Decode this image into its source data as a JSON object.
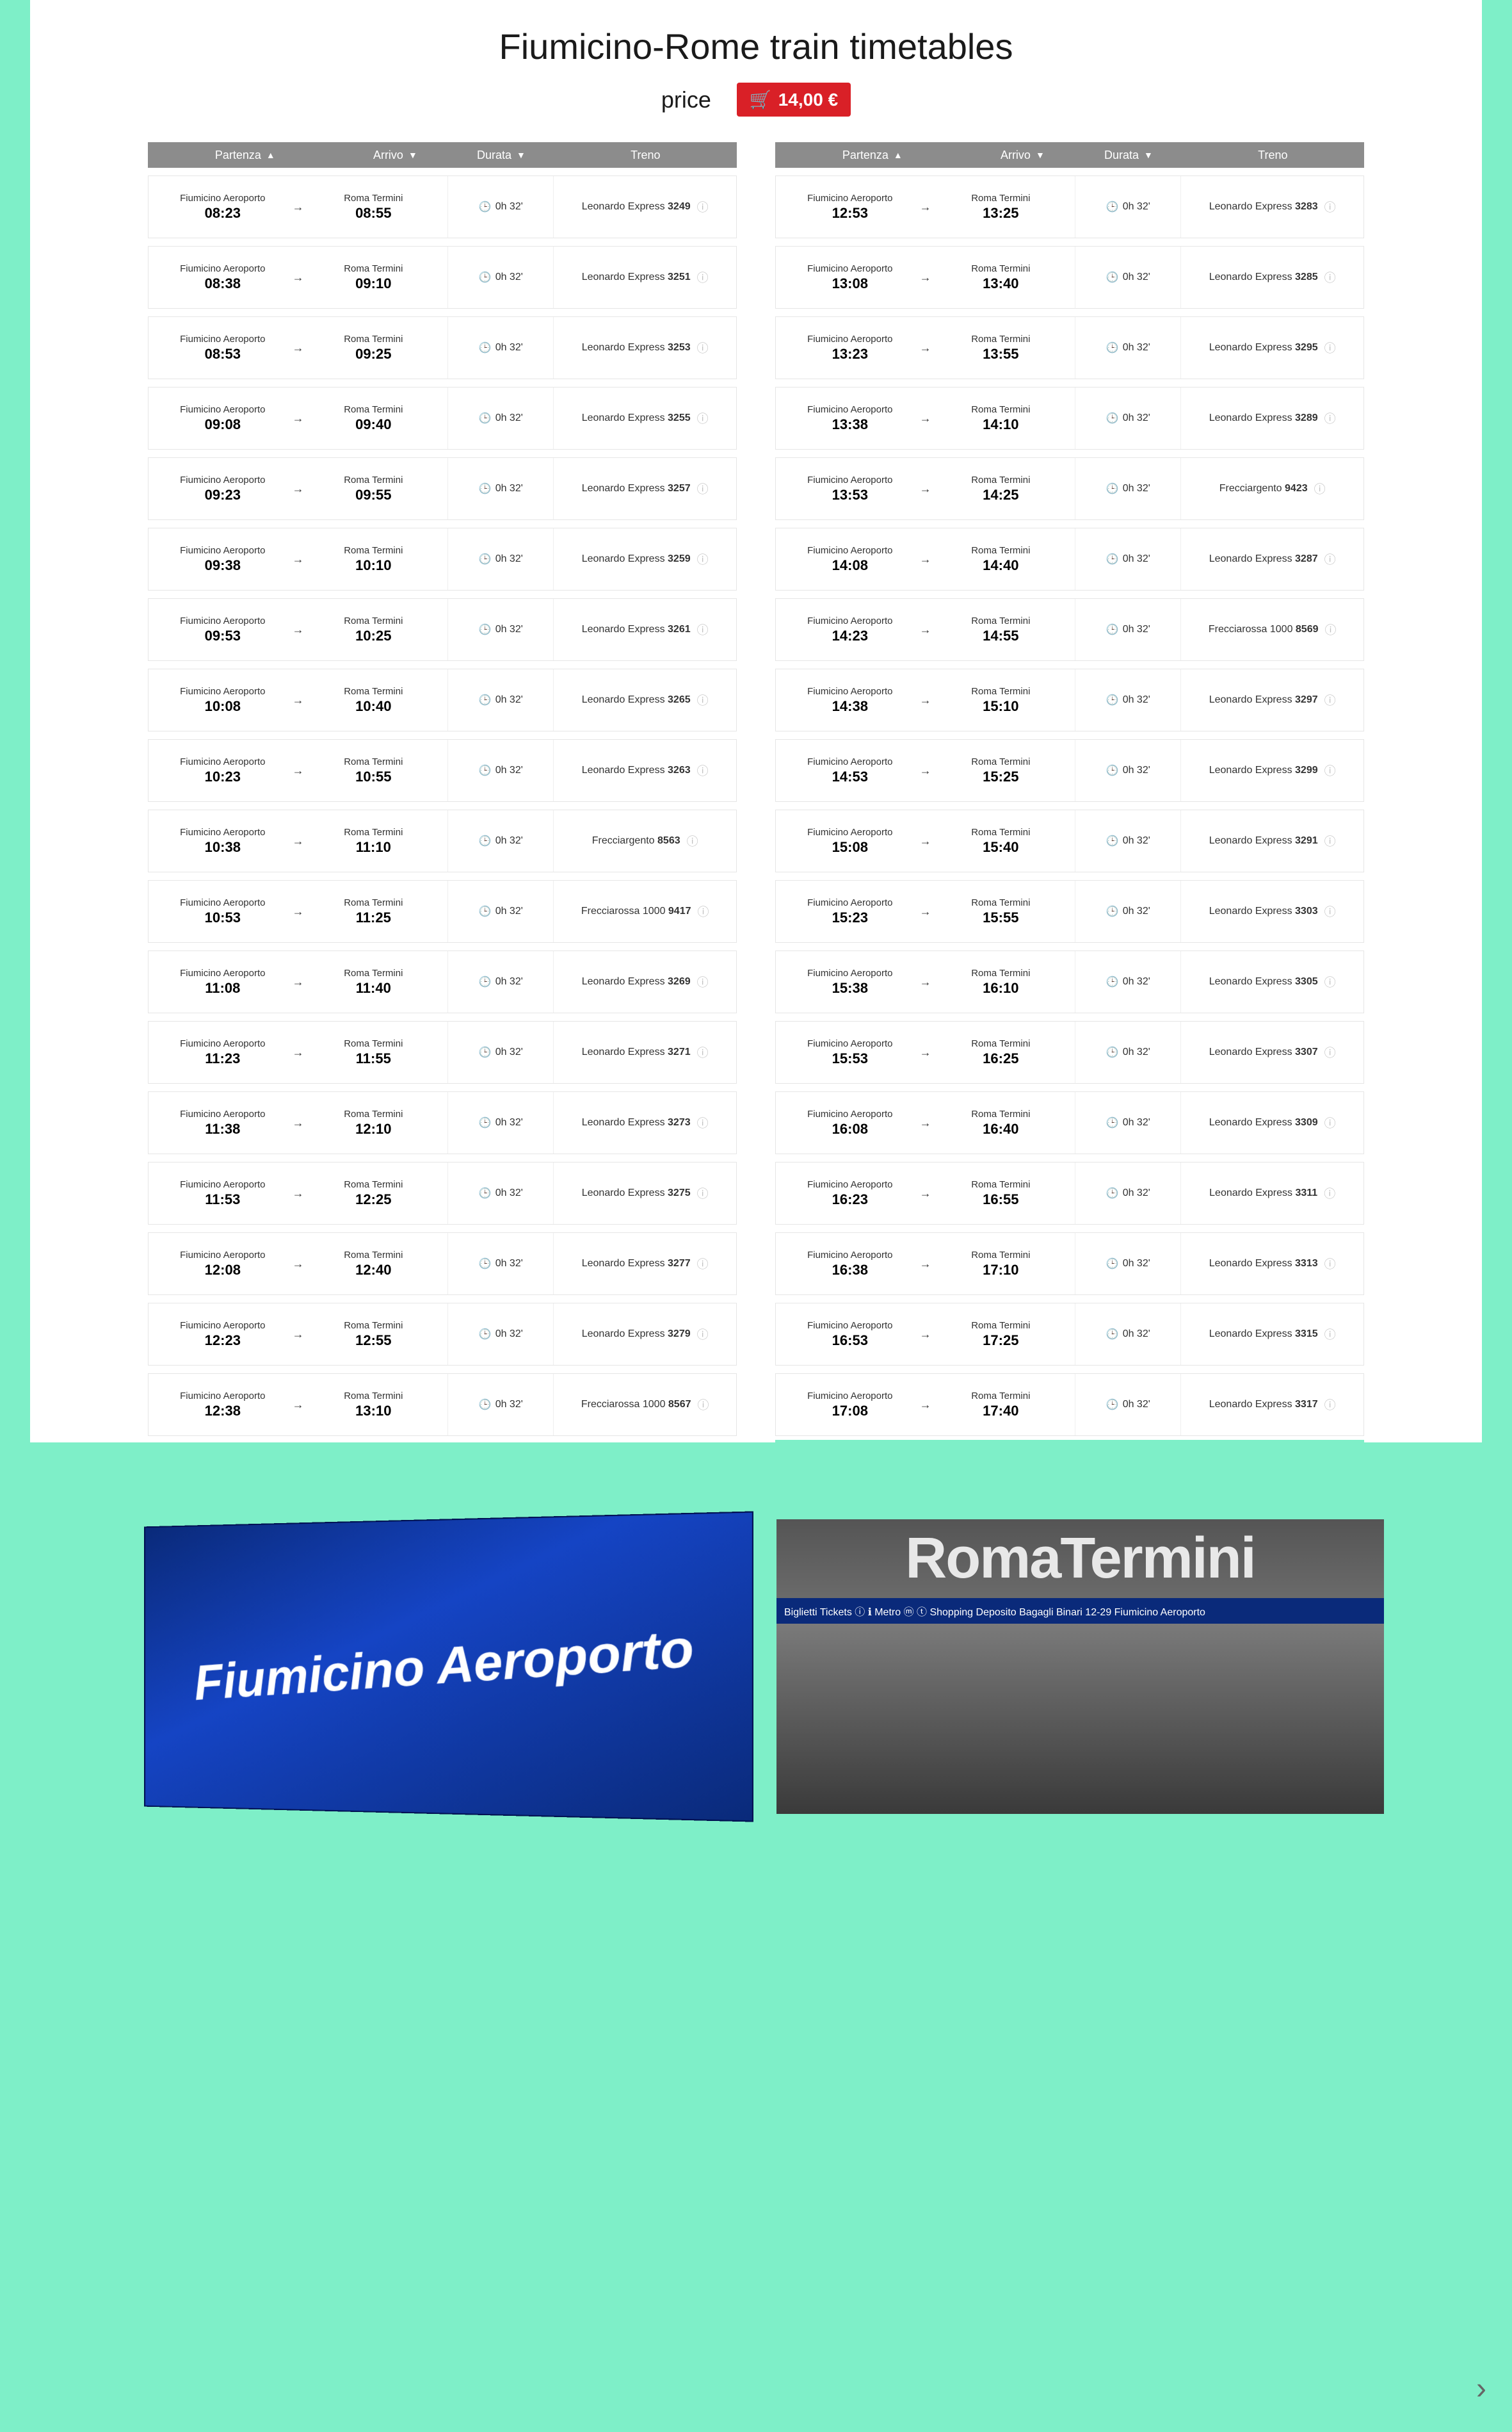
{
  "title": "Fiumicino-Rome train timetables",
  "price_label": "price",
  "price_value": "14,00 €",
  "headers": {
    "departure": "Partenza",
    "arrival": "Arrivo",
    "duration": "Durata",
    "train": "Treno"
  },
  "dep_station": "Fiumicino Aeroporto",
  "arr_station": "Roma Termini",
  "duration": "0h 32'",
  "left_rows": [
    {
      "dep": "08:23",
      "arr": "08:55",
      "train": "Leonardo Express",
      "num": "3249"
    },
    {
      "dep": "08:38",
      "arr": "09:10",
      "train": "Leonardo Express",
      "num": "3251"
    },
    {
      "dep": "08:53",
      "arr": "09:25",
      "train": "Leonardo Express",
      "num": "3253"
    },
    {
      "dep": "09:08",
      "arr": "09:40",
      "train": "Leonardo Express",
      "num": "3255"
    },
    {
      "dep": "09:23",
      "arr": "09:55",
      "train": "Leonardo Express",
      "num": "3257"
    },
    {
      "dep": "09:38",
      "arr": "10:10",
      "train": "Leonardo Express",
      "num": "3259"
    },
    {
      "dep": "09:53",
      "arr": "10:25",
      "train": "Leonardo Express",
      "num": "3261"
    },
    {
      "dep": "10:08",
      "arr": "10:40",
      "train": "Leonardo Express",
      "num": "3265"
    },
    {
      "dep": "10:23",
      "arr": "10:55",
      "train": "Leonardo Express",
      "num": "3263"
    },
    {
      "dep": "10:38",
      "arr": "11:10",
      "train": "Frecciargento",
      "num": "8563"
    },
    {
      "dep": "10:53",
      "arr": "11:25",
      "train": "Frecciarossa 1000",
      "num": "9417"
    },
    {
      "dep": "11:08",
      "arr": "11:40",
      "train": "Leonardo Express",
      "num": "3269"
    },
    {
      "dep": "11:23",
      "arr": "11:55",
      "train": "Leonardo Express",
      "num": "3271"
    },
    {
      "dep": "11:38",
      "arr": "12:10",
      "train": "Leonardo Express",
      "num": "3273"
    },
    {
      "dep": "11:53",
      "arr": "12:25",
      "train": "Leonardo Express",
      "num": "3275"
    },
    {
      "dep": "12:08",
      "arr": "12:40",
      "train": "Leonardo Express",
      "num": "3277"
    },
    {
      "dep": "12:23",
      "arr": "12:55",
      "train": "Leonardo Express",
      "num": "3279"
    },
    {
      "dep": "12:38",
      "arr": "13:10",
      "train": "Frecciarossa 1000",
      "num": "8567"
    }
  ],
  "right_rows": [
    {
      "dep": "12:53",
      "arr": "13:25",
      "train": "Leonardo Express",
      "num": "3283"
    },
    {
      "dep": "13:08",
      "arr": "13:40",
      "train": "Leonardo Express",
      "num": "3285"
    },
    {
      "dep": "13:23",
      "arr": "13:55",
      "train": "Leonardo Express",
      "num": "3295"
    },
    {
      "dep": "13:38",
      "arr": "14:10",
      "train": "Leonardo Express",
      "num": "3289"
    },
    {
      "dep": "13:53",
      "arr": "14:25",
      "train": "Frecciargento",
      "num": "9423"
    },
    {
      "dep": "14:08",
      "arr": "14:40",
      "train": "Leonardo Express",
      "num": "3287"
    },
    {
      "dep": "14:23",
      "arr": "14:55",
      "train": "Frecciarossa 1000",
      "num": "8569"
    },
    {
      "dep": "14:38",
      "arr": "15:10",
      "train": "Leonardo Express",
      "num": "3297"
    },
    {
      "dep": "14:53",
      "arr": "15:25",
      "train": "Leonardo Express",
      "num": "3299"
    },
    {
      "dep": "15:08",
      "arr": "15:40",
      "train": "Leonardo Express",
      "num": "3291"
    },
    {
      "dep": "15:23",
      "arr": "15:55",
      "train": "Leonardo Express",
      "num": "3303"
    },
    {
      "dep": "15:38",
      "arr": "16:10",
      "train": "Leonardo Express",
      "num": "3305"
    },
    {
      "dep": "15:53",
      "arr": "16:25",
      "train": "Leonardo Express",
      "num": "3307"
    },
    {
      "dep": "16:08",
      "arr": "16:40",
      "train": "Leonardo Express",
      "num": "3309"
    },
    {
      "dep": "16:23",
      "arr": "16:55",
      "train": "Leonardo Express",
      "num": "3311"
    },
    {
      "dep": "16:38",
      "arr": "17:10",
      "train": "Leonardo Express",
      "num": "3313"
    },
    {
      "dep": "16:53",
      "arr": "17:25",
      "train": "Leonardo Express",
      "num": "3315"
    },
    {
      "dep": "17:08",
      "arr": "17:40",
      "train": "Leonardo Express",
      "num": "3317"
    }
  ],
  "photo_labels": {
    "fiumicino": "Fiumicino Aeroporto",
    "termini": "RomaTermini",
    "termini_strip": "Biglietti Tickets   ⓘ ℹ   Metro ⓜ   ⓣ   Shopping   Deposito Bagagli   Binari 12-29   Fiumicino Aeroporto"
  },
  "colors": {
    "page_bg": "#7eefc8",
    "card_bg": "#ffffff",
    "header_bg": "#8c8c8c",
    "header_text": "#ffffff",
    "price_bg": "#d92027",
    "border": "#e6e6e6",
    "text": "#333333",
    "info_icon": "#c0c0c0"
  }
}
